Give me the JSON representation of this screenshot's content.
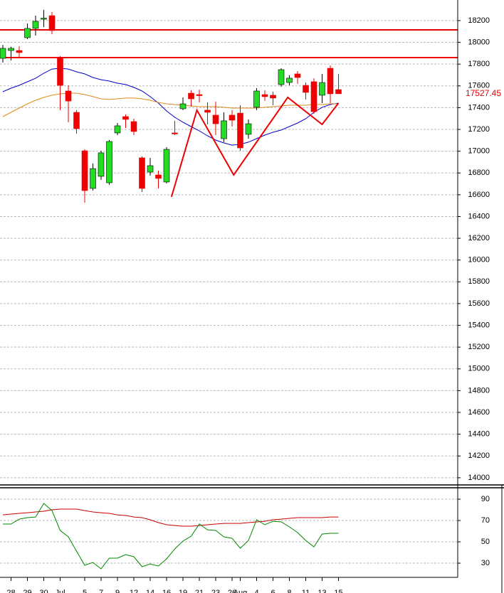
{
  "chart_data": [
    {
      "type": "candlestick",
      "categories": [
        null,
        "28",
        null,
        "29",
        null,
        "30",
        null,
        "Jul",
        null,
        null,
        "5",
        null,
        "7",
        null,
        "9",
        null,
        "12",
        null,
        "14",
        null,
        "16",
        null,
        "19",
        null,
        "21",
        null,
        "23",
        null,
        "26",
        "Aug",
        null,
        "4",
        null,
        "6",
        null,
        "8",
        null,
        "11",
        null,
        "13",
        null,
        "15"
      ],
      "open": [
        17853,
        17925,
        17925,
        18043,
        18128,
        18219,
        18245,
        17853,
        17553,
        17357,
        17004,
        16658,
        16769,
        16710,
        17168,
        17318,
        17272,
        16939,
        16808,
        16782,
        16717,
        17168,
        17390,
        17533,
        17520,
        17377,
        17331,
        17115,
        17331,
        17350,
        17155,
        17403,
        17520,
        17514,
        17612,
        17631,
        17710,
        17605,
        17638,
        17514,
        17762,
        17566
      ],
      "high": [
        17977,
        17960,
        17964,
        18173,
        18245,
        18298,
        18278,
        17873,
        17605,
        17377,
        17017,
        16887,
        17004,
        17102,
        17259,
        17337,
        17298,
        16952,
        16939,
        16821,
        17037,
        17279,
        17494,
        17559,
        17566,
        17448,
        17455,
        17357,
        17377,
        17422,
        17292,
        17579,
        17559,
        17547,
        17762,
        17697,
        17736,
        17631,
        17670,
        17710,
        17788,
        17710
      ],
      "low": [
        17814,
        17834,
        17866,
        18030,
        18062,
        18141,
        18075,
        17377,
        17266,
        17161,
        16527,
        16638,
        16736,
        16691,
        17148,
        17213,
        17148,
        16625,
        16776,
        16658,
        16704,
        17148,
        17377,
        17409,
        17448,
        17246,
        17148,
        17083,
        17226,
        17004,
        17115,
        17377,
        17462,
        17422,
        17592,
        17605,
        17618,
        17475,
        17344,
        17442,
        17442,
        17527
      ],
      "close": [
        17945,
        17945,
        17906,
        18128,
        18193,
        18222,
        18108,
        17605,
        17461,
        17207,
        16638,
        16840,
        16985,
        17089,
        17233,
        17292,
        17181,
        16658,
        16867,
        16750,
        17017,
        17165,
        17435,
        17481,
        17514,
        17357,
        17252,
        17279,
        17285,
        17030,
        17252,
        17553,
        17501,
        17488,
        17749,
        17671,
        17677,
        17540,
        17363,
        17631,
        17527,
        17527.45
      ],
      "up_color": "#22dd22",
      "down_color": "#ee0000",
      "lines": [
        {
          "color": "#0000cc",
          "values": [
            17546,
            17579,
            17605,
            17638,
            17670,
            17716,
            17755,
            17762,
            17755,
            17729,
            17710,
            17677,
            17657,
            17644,
            17625,
            17612,
            17586,
            17553,
            17501,
            17442,
            17370,
            17311,
            17266,
            17226,
            17187,
            17141,
            17102,
            17076,
            17056,
            17063,
            17083,
            17115,
            17148,
            17174,
            17194,
            17226,
            17259,
            17298,
            17357,
            17403,
            17429,
            17442
          ]
        },
        {
          "color": "#e08a1e",
          "values": [
            17318,
            17357,
            17396,
            17435,
            17468,
            17494,
            17514,
            17527,
            17533,
            17533,
            17520,
            17501,
            17481,
            17475,
            17481,
            17488,
            17488,
            17481,
            17468,
            17448,
            17435,
            17429,
            17422,
            17416,
            17409,
            17409,
            17409,
            17403,
            17396,
            17396,
            17396,
            17396,
            17403,
            17409,
            17416,
            17422,
            17422,
            17422,
            17429,
            17429,
            17435,
            17435
          ]
        }
      ],
      "zigzag": {
        "color": "#ee0000",
        "x": [
          20.6,
          23.7,
          28.2,
          34.8,
          39,
          41
        ],
        "values": [
          16580,
          17377,
          16782,
          17494,
          17246,
          17442
        ]
      },
      "hlines": [
        18115,
        17860
      ],
      "hline_color": "#ee0000",
      "last_value": 17527.45,
      "last_color": "#ee0000",
      "ylim": [
        13947,
        18389
      ],
      "yticks": [
        14000,
        14200,
        14400,
        14600,
        14800,
        15000,
        15200,
        15400,
        15600,
        15800,
        16000,
        16200,
        16400,
        16600,
        16800,
        17000,
        17200,
        17400,
        17600,
        17800,
        18000,
        18200
      ],
      "grid": true
    },
    {
      "type": "line",
      "series": [
        {
          "color": "#cc0000",
          "values": [
            75.3,
            76,
            76.7,
            77.3,
            78,
            78.7,
            80,
            80.7,
            80.7,
            80.7,
            79.3,
            78,
            77.3,
            76.7,
            75.3,
            74.7,
            73.3,
            72.7,
            70.7,
            68,
            66,
            65.3,
            64.7,
            64.7,
            65.3,
            66,
            66.7,
            67.3,
            67.3,
            67.3,
            68,
            68.7,
            69.3,
            70.7,
            71.3,
            72,
            72.7,
            72.7,
            72.7,
            72.7,
            73.3,
            73.3
          ]
        },
        {
          "color": "#008800",
          "values": [
            66.7,
            66.7,
            71.3,
            72.7,
            73.3,
            86,
            79.3,
            60.7,
            54.7,
            41.3,
            28,
            30.7,
            24.7,
            34.7,
            34.7,
            38,
            36,
            26.7,
            29.3,
            27.3,
            34,
            43.3,
            50.7,
            55.3,
            66.7,
            61.3,
            60.7,
            54.7,
            53.3,
            44,
            51.3,
            70.7,
            66,
            69.3,
            68.7,
            64,
            58.7,
            51.3,
            45.3,
            57.3,
            58,
            58
          ]
        }
      ],
      "ylim": [
        16.7,
        100.7
      ],
      "yticks": [
        30,
        50,
        70,
        90
      ],
      "grid": true
    }
  ]
}
